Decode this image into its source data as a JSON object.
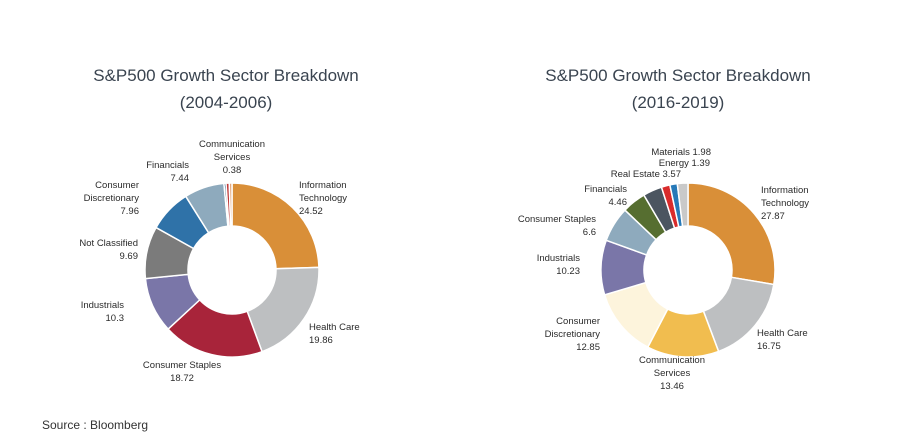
{
  "chart_data": [
    {
      "type": "pie",
      "title": "S&P500 Growth Sector Breakdown",
      "subtitle": "(2004-2006)",
      "slices": [
        {
          "name": "Information Technology",
          "value": 24.52,
          "color": "#d98f38"
        },
        {
          "name": "Health Care",
          "value": 19.86,
          "color": "#bdbfc1"
        },
        {
          "name": "Consumer Staples",
          "value": 18.72,
          "color": "#a8243a"
        },
        {
          "name": "Industrials",
          "value": 10.3,
          "color": "#7a76a8"
        },
        {
          "name": "Not Classified",
          "value": 9.69,
          "color": "#7b7b7b"
        },
        {
          "name": "Consumer Discretionary",
          "value": 7.96,
          "color": "#2f72a8"
        },
        {
          "name": "Financials",
          "value": 7.44,
          "color": "#8eaabd"
        },
        {
          "name": "Communication Services",
          "value": 0.38,
          "color": "#1f4e7a"
        },
        {
          "name": "",
          "value": 0.6,
          "color": "#c03a3a"
        },
        {
          "name": "",
          "value": 0.5,
          "color": "#e0a070"
        }
      ],
      "labels": [
        {
          "lines": [
            "Information",
            "Technology",
            "24.52"
          ],
          "anchor": "start"
        },
        {
          "lines": [
            "Health Care",
            "19.86"
          ],
          "anchor": "start"
        },
        {
          "lines": [
            "Consumer Staples",
            "18.72"
          ],
          "anchor": "middle"
        },
        {
          "lines": [
            "Industrials",
            "10.3"
          ],
          "anchor": "end"
        },
        {
          "lines": [
            "Not Classified",
            "9.69"
          ],
          "anchor": "end"
        },
        {
          "lines": [
            "Consumer",
            "Discretionary",
            "7.96"
          ],
          "anchor": "end"
        },
        {
          "lines": [
            "Financials",
            "7.44"
          ],
          "anchor": "end"
        },
        {
          "lines": [
            "Communication",
            "Services",
            "0.38"
          ],
          "anchor": "middle"
        }
      ]
    },
    {
      "type": "pie",
      "title": "S&P500 Growth Sector Breakdown",
      "subtitle": "(2016-2019)",
      "slices": [
        {
          "name": "Information Technology",
          "value": 27.87,
          "color": "#d98f38"
        },
        {
          "name": "Health Care",
          "value": 16.75,
          "color": "#bdbfc1"
        },
        {
          "name": "Communication Services",
          "value": 13.46,
          "color": "#f1bd4f"
        },
        {
          "name": "Consumer Discretionary",
          "value": 12.85,
          "color": "#fdf4dc"
        },
        {
          "name": "Industrials",
          "value": 10.23,
          "color": "#7a76a8"
        },
        {
          "name": "Consumer Staples",
          "value": 6.6,
          "color": "#8eaabd"
        },
        {
          "name": "Financials",
          "value": 4.46,
          "color": "#566e30"
        },
        {
          "name": "Real Estate",
          "value": 3.57,
          "color": "#4b5560"
        },
        {
          "name": "",
          "value": 1.6,
          "color": "#d92b2b"
        },
        {
          "name": "Energy",
          "value": 1.39,
          "color": "#2779b8"
        },
        {
          "name": "Materials",
          "value": 1.98,
          "color": "#c9c9c9"
        }
      ],
      "labels": [
        {
          "lines": [
            "Information",
            "Technology",
            "27.87"
          ],
          "anchor": "start"
        },
        {
          "lines": [
            "Health Care",
            "16.75"
          ],
          "anchor": "start"
        },
        {
          "lines": [
            "Communication",
            "Services",
            "13.46"
          ],
          "anchor": "middle"
        },
        {
          "lines": [
            "Consumer",
            "Discretionary",
            "12.85"
          ],
          "anchor": "end"
        },
        {
          "lines": [
            "Industrials",
            "10.23"
          ],
          "anchor": "end"
        },
        {
          "lines": [
            "Consumer Staples",
            "6.6"
          ],
          "anchor": "end"
        },
        {
          "lines": [
            "Financials",
            "4.46"
          ],
          "anchor": "end"
        },
        {
          "lines": [
            "Real Estate 3.57"
          ],
          "anchor": "end"
        },
        {
          "lines": [
            "Energy 1.39"
          ],
          "anchor": "end"
        },
        {
          "lines": [
            "Materials 1.98"
          ],
          "anchor": "end"
        }
      ]
    }
  ],
  "source": "Source : Bloomberg"
}
